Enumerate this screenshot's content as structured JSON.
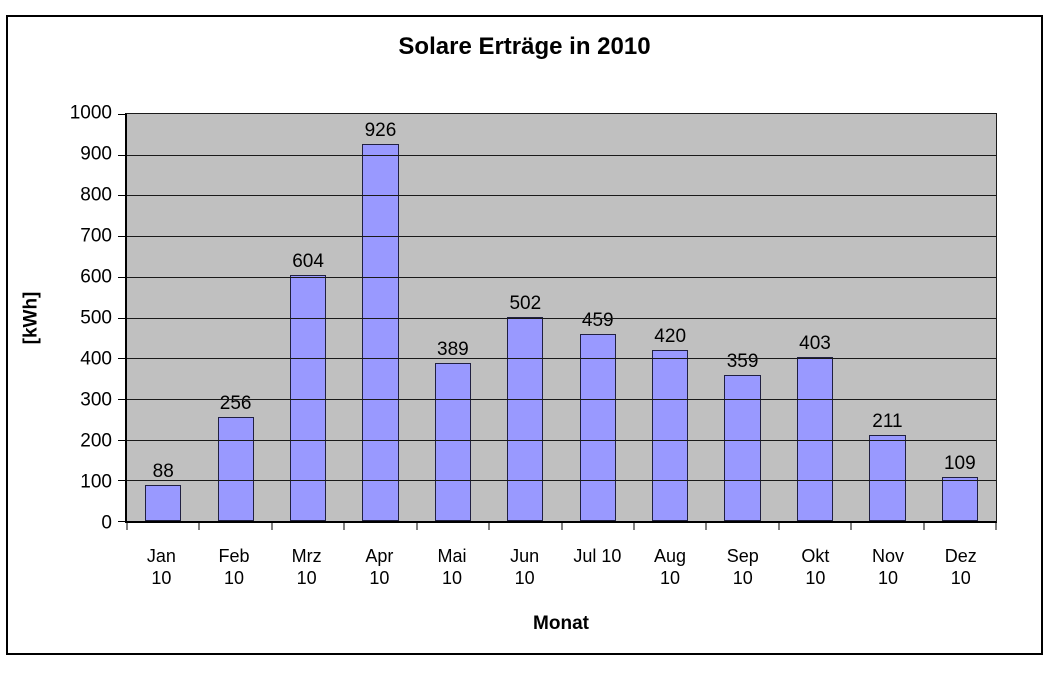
{
  "chart_data": {
    "type": "bar",
    "title": "Solare Erträge in 2010",
    "xlabel": "Monat",
    "ylabel": "[kWh]",
    "categories": [
      "Jan 10",
      "Feb 10",
      "Mrz 10",
      "Apr 10",
      "Mai 10",
      "Jun 10",
      "Jul 10",
      "Aug 10",
      "Sep 10",
      "Okt 10",
      "Nov 10",
      "Dez 10"
    ],
    "category_display": [
      [
        "Jan",
        "10"
      ],
      [
        "Feb",
        "10"
      ],
      [
        "Mrz",
        "10"
      ],
      [
        "Apr",
        "10"
      ],
      [
        "Mai",
        "10"
      ],
      [
        "Jun",
        "10"
      ],
      [
        "Jul 10"
      ],
      [
        "Aug",
        "10"
      ],
      [
        "Sep",
        "10"
      ],
      [
        "Okt",
        "10"
      ],
      [
        "Nov",
        "10"
      ],
      [
        "Dez",
        "10"
      ]
    ],
    "values": [
      88,
      256,
      604,
      926,
      389,
      502,
      459,
      420,
      359,
      403,
      211,
      109
    ],
    "ylim": [
      0,
      1000
    ],
    "ytick_step": 100,
    "yticks": [
      0,
      100,
      200,
      300,
      400,
      500,
      600,
      700,
      800,
      900,
      1000
    ],
    "grid": "horizontal",
    "legend": "none",
    "colors": {
      "bar_fill": "#9999FF",
      "bar_border": "#202040",
      "plot_background": "#C0C0C0",
      "gridline": "#1A1A1A",
      "axis": "#000000",
      "chart_background": "#FFFFFF",
      "frame_border": "#000000",
      "text": "#000000"
    }
  }
}
